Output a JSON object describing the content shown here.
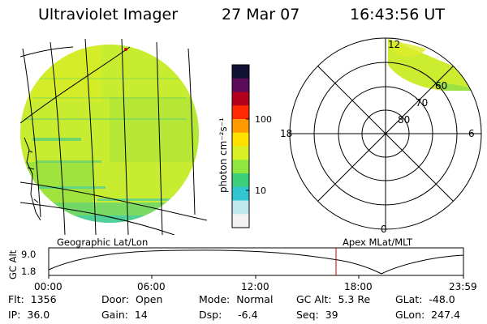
{
  "header": {
    "title": "Ultraviolet Imager",
    "date": "27 Mar 07",
    "time": "16:43:56 UT"
  },
  "colorbar": {
    "unit_label": "photon cm⁻²s⁻¹",
    "ticks": [
      "100",
      "10"
    ],
    "colors": [
      "#111133",
      "#5a0b59",
      "#b4001c",
      "#ff2a00",
      "#ff9b00",
      "#ffe100",
      "#d9f025",
      "#8fe63c",
      "#3ccf7a",
      "#32c6d2",
      "#bfe9ef",
      "#f2f2f2"
    ]
  },
  "polar_plot": {
    "mlt_labels": {
      "top": "12",
      "bottom": "0",
      "left": "18",
      "right": "6"
    },
    "lat_labels": [
      "80",
      "70",
      "60"
    ]
  },
  "altitude_plot": {
    "left_title": "Geographic Lat/Lon",
    "right_title": "Apex MLat/MLT",
    "axis_label": "GC Alt",
    "y_ticks": [
      "9.0",
      "1.8"
    ],
    "x_ticks": [
      "00:00",
      "06:00",
      "12:00",
      "18:00",
      "23:59"
    ],
    "marker_time": "16:43:56",
    "marker_color": "#cc0000"
  },
  "info": {
    "flt": "Flt:  1356",
    "ip": "IP:  36.0",
    "door": "Door:  Open",
    "gain": "Gain:  14",
    "mode": "Mode:  Normal",
    "dsp": "Dsp:     -6.4",
    "gcalt": "GC Alt:  5.3 Re",
    "seq": "Seq:  39",
    "glat": "GLat:  -48.0",
    "glon": "GLon:  247.4"
  }
}
